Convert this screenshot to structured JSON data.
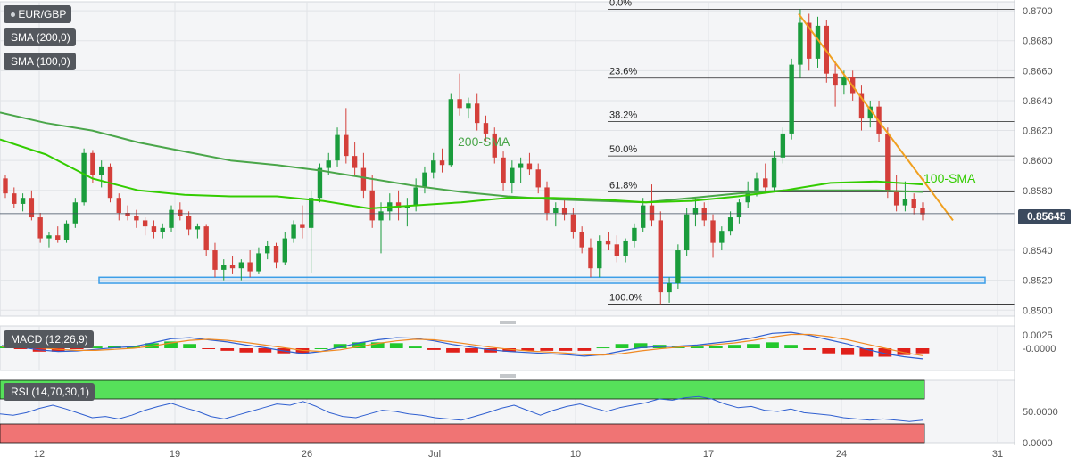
{
  "legend": {
    "symbol": "EUR/GBP",
    "sma200": "SMA (200,0)",
    "sma100": "SMA (100,0)",
    "macd": "MACD (12,26,9)",
    "rsi": "RSI (14,70,30,1)"
  },
  "last_price": "0.85645",
  "colors": {
    "bull": "#1a9c3c",
    "bear": "#d43f3a",
    "sma200": "#4aa64a",
    "sma100": "#33cc00",
    "trend": "#f0a020",
    "support_box": "#3c9ee8",
    "macd_line": "#2f5fd0",
    "signal_line": "#f08a24",
    "rsi_line": "#2f5fd0",
    "overbought": "#56e05a",
    "oversold": "#f07474"
  },
  "chart_data": [
    {
      "type": "candlestick",
      "title": "EUR/GBP",
      "x_ticks": [
        "12",
        "19",
        "26",
        "Jul",
        "10",
        "17",
        "24",
        "31"
      ],
      "y_ticks": [
        "0.8500",
        "0.8520",
        "0.8540",
        "0.8580",
        "0.8600",
        "0.8620",
        "0.8640",
        "0.8660",
        "0.8680",
        "0.8700"
      ],
      "ylim": [
        0.8496,
        0.8706
      ],
      "annotations": {
        "sma200_label": "200-SMA",
        "sma100_label": "100-SMA"
      },
      "fibonacci": [
        {
          "label": "0.0%",
          "value": 0.8701
        },
        {
          "label": "23.6%",
          "value": 0.8655
        },
        {
          "label": "38.2%",
          "value": 0.8626
        },
        {
          "label": "50.0%",
          "value": 0.8603
        },
        {
          "label": "61.8%",
          "value": 0.8579
        },
        {
          "label": "100.0%",
          "value": 0.8504
        }
      ],
      "support_zone": [
        0.8518,
        0.8522
      ],
      "current_price": 0.85645,
      "trendline": [
        [
          0.8698,
          "Jul 20"
        ],
        [
          0.856,
          "Jul 28"
        ]
      ],
      "sma200": [
        0.8632,
        0.8625,
        0.862,
        0.8612,
        0.8606,
        0.86,
        0.8597,
        0.8593,
        0.8588,
        0.8583,
        0.8579,
        0.8576,
        0.8574,
        0.8573,
        0.8572,
        0.8575,
        0.8578,
        0.858,
        0.858,
        0.858,
        0.8579
      ],
      "sma100": [
        0.8614,
        0.8604,
        0.8588,
        0.858,
        0.8577,
        0.8576,
        0.8576,
        0.8573,
        0.8568,
        0.857,
        0.8572,
        0.8575,
        0.8575,
        0.8574,
        0.8572,
        0.8573,
        0.8576,
        0.858,
        0.8585,
        0.8586,
        0.8584
      ],
      "candles": [
        [
          0.8588,
          0.859,
          0.8575,
          0.8578
        ],
        [
          0.8578,
          0.8582,
          0.8568,
          0.8571
        ],
        [
          0.8571,
          0.8578,
          0.8566,
          0.8575
        ],
        [
          0.8575,
          0.858,
          0.856,
          0.8562
        ],
        [
          0.8562,
          0.8565,
          0.8545,
          0.8548
        ],
        [
          0.8548,
          0.8552,
          0.8542,
          0.855
        ],
        [
          0.855,
          0.8556,
          0.8545,
          0.8547
        ],
        [
          0.8547,
          0.856,
          0.8545,
          0.8558
        ],
        [
          0.8558,
          0.8575,
          0.8555,
          0.8572
        ],
        [
          0.8572,
          0.8608,
          0.857,
          0.8605
        ],
        [
          0.8605,
          0.8607,
          0.8585,
          0.859
        ],
        [
          0.859,
          0.86,
          0.8582,
          0.8596
        ],
        [
          0.8596,
          0.8598,
          0.8572,
          0.8575
        ],
        [
          0.8575,
          0.8578,
          0.856,
          0.8565
        ],
        [
          0.8565,
          0.857,
          0.856,
          0.8563
        ],
        [
          0.8563,
          0.8567,
          0.8555,
          0.856
        ],
        [
          0.856,
          0.8562,
          0.855,
          0.8556
        ],
        [
          0.8556,
          0.856,
          0.8548,
          0.8552
        ],
        [
          0.8552,
          0.8558,
          0.8548,
          0.8555
        ],
        [
          0.8555,
          0.857,
          0.8552,
          0.8567
        ],
        [
          0.8567,
          0.8572,
          0.856,
          0.8563
        ],
        [
          0.8563,
          0.8566,
          0.855,
          0.8554
        ],
        [
          0.8554,
          0.8558,
          0.8548,
          0.8556
        ],
        [
          0.8556,
          0.8557,
          0.8536,
          0.854
        ],
        [
          0.854,
          0.8545,
          0.8522,
          0.8527
        ],
        [
          0.8527,
          0.8534,
          0.852,
          0.853
        ],
        [
          0.853,
          0.8536,
          0.8524,
          0.8528
        ],
        [
          0.8528,
          0.8534,
          0.852,
          0.8532
        ],
        [
          0.8532,
          0.854,
          0.8522,
          0.8526
        ],
        [
          0.8526,
          0.8542,
          0.8524,
          0.8538
        ],
        [
          0.8538,
          0.8546,
          0.8534,
          0.8543
        ],
        [
          0.8543,
          0.8545,
          0.8528,
          0.8532
        ],
        [
          0.8532,
          0.8552,
          0.853,
          0.8548
        ],
        [
          0.8548,
          0.856,
          0.8545,
          0.8557
        ],
        [
          0.8557,
          0.857,
          0.8548,
          0.8555
        ],
        [
          0.8555,
          0.858,
          0.8525,
          0.8575
        ],
        [
          0.8575,
          0.8598,
          0.8572,
          0.8595
        ],
        [
          0.8595,
          0.8605,
          0.859,
          0.86
        ],
        [
          0.86,
          0.8622,
          0.8596,
          0.8617
        ],
        [
          0.8617,
          0.8635,
          0.8598,
          0.8603
        ],
        [
          0.8603,
          0.8612,
          0.859,
          0.8595
        ],
        [
          0.8595,
          0.8605,
          0.8575,
          0.858
        ],
        [
          0.858,
          0.859,
          0.8555,
          0.856
        ],
        [
          0.856,
          0.8572,
          0.8538,
          0.8566
        ],
        [
          0.8566,
          0.8578,
          0.856,
          0.8572
        ],
        [
          0.8572,
          0.858,
          0.856,
          0.8568
        ],
        [
          0.8568,
          0.8575,
          0.8556,
          0.857
        ],
        [
          0.857,
          0.8588,
          0.8566,
          0.8582
        ],
        [
          0.8582,
          0.8596,
          0.8578,
          0.8592
        ],
        [
          0.8592,
          0.8605,
          0.8588,
          0.86
        ],
        [
          0.86,
          0.8608,
          0.8592,
          0.8597
        ],
        [
          0.8597,
          0.8645,
          0.8596,
          0.8641
        ],
        [
          0.8641,
          0.8658,
          0.863,
          0.8635
        ],
        [
          0.8635,
          0.8642,
          0.8628,
          0.8638
        ],
        [
          0.8638,
          0.8645,
          0.862,
          0.8625
        ],
        [
          0.8625,
          0.863,
          0.8612,
          0.8618
        ],
        [
          0.8618,
          0.8622,
          0.8598,
          0.8602
        ],
        [
          0.8602,
          0.8606,
          0.858,
          0.8585
        ],
        [
          0.8585,
          0.86,
          0.8578,
          0.8595
        ],
        [
          0.8595,
          0.8602,
          0.8585,
          0.8598
        ],
        [
          0.8598,
          0.8605,
          0.859,
          0.8594
        ],
        [
          0.8594,
          0.8598,
          0.8578,
          0.8582
        ],
        [
          0.8582,
          0.8586,
          0.856,
          0.8565
        ],
        [
          0.8565,
          0.8572,
          0.8556,
          0.8568
        ],
        [
          0.8568,
          0.8574,
          0.856,
          0.8564
        ],
        [
          0.8564,
          0.8568,
          0.8548,
          0.8552
        ],
        [
          0.8552,
          0.8556,
          0.8538,
          0.8542
        ],
        [
          0.8542,
          0.8548,
          0.8522,
          0.8528
        ],
        [
          0.8528,
          0.855,
          0.8522,
          0.8546
        ],
        [
          0.8546,
          0.8552,
          0.854,
          0.8544
        ],
        [
          0.8544,
          0.855,
          0.8532,
          0.8536
        ],
        [
          0.8536,
          0.8548,
          0.8532,
          0.8546
        ],
        [
          0.8546,
          0.8558,
          0.8542,
          0.8555
        ],
        [
          0.8555,
          0.8575,
          0.8552,
          0.857
        ],
        [
          0.857,
          0.8584,
          0.8556,
          0.856
        ],
        [
          0.856,
          0.8566,
          0.8504,
          0.8512
        ],
        [
          0.8512,
          0.8522,
          0.8505,
          0.8518
        ],
        [
          0.8518,
          0.8544,
          0.8514,
          0.854
        ],
        [
          0.854,
          0.8568,
          0.8536,
          0.8564
        ],
        [
          0.8564,
          0.8575,
          0.8556,
          0.8568
        ],
        [
          0.8568,
          0.8572,
          0.8556,
          0.856
        ],
        [
          0.856,
          0.8564,
          0.8535,
          0.8545
        ],
        [
          0.8545,
          0.8556,
          0.854,
          0.8553
        ],
        [
          0.8553,
          0.8566,
          0.855,
          0.8562
        ],
        [
          0.8562,
          0.8574,
          0.8558,
          0.8572
        ],
        [
          0.8572,
          0.8586,
          0.8568,
          0.858
        ],
        [
          0.858,
          0.8592,
          0.8576,
          0.8588
        ],
        [
          0.8588,
          0.8598,
          0.8578,
          0.8582
        ],
        [
          0.8582,
          0.8606,
          0.858,
          0.8602
        ],
        [
          0.8602,
          0.8622,
          0.8598,
          0.8618
        ],
        [
          0.8618,
          0.8668,
          0.8614,
          0.8664
        ],
        [
          0.8664,
          0.8701,
          0.8655,
          0.8692
        ],
        [
          0.8692,
          0.8698,
          0.866,
          0.8668
        ],
        [
          0.8668,
          0.8696,
          0.8662,
          0.869
        ],
        [
          0.869,
          0.8694,
          0.8652,
          0.8658
        ],
        [
          0.8658,
          0.8666,
          0.8636,
          0.865
        ],
        [
          0.865,
          0.866,
          0.8644,
          0.8656
        ],
        [
          0.8656,
          0.866,
          0.864,
          0.8645
        ],
        [
          0.8645,
          0.865,
          0.862,
          0.8628
        ],
        [
          0.8628,
          0.864,
          0.8622,
          0.8636
        ],
        [
          0.8636,
          0.864,
          0.8612,
          0.8618
        ],
        [
          0.8618,
          0.8622,
          0.8575,
          0.858
        ],
        [
          0.858,
          0.859,
          0.8566,
          0.857
        ],
        [
          0.857,
          0.8586,
          0.8566,
          0.8574
        ],
        [
          0.8574,
          0.8578,
          0.8564,
          0.8568
        ],
        [
          0.8568,
          0.8572,
          0.856,
          0.8564
        ]
      ]
    },
    {
      "type": "line",
      "title": "MACD (12,26,9)",
      "y_ticks": [
        "0.0025",
        "-0.0000"
      ],
      "ylim": [
        -0.0042,
        0.0042
      ],
      "series": [
        {
          "name": "MACD",
          "values": [
            0.0005,
            0.0002,
            -0.0003,
            -0.0006,
            -0.0005,
            -0.0002,
            0.0001,
            0.0003,
            0.001,
            0.0018,
            0.002,
            0.0016,
            0.0012,
            0.0006,
            0.0001,
            -0.0005,
            -0.001,
            -0.0006,
            0.0002,
            0.001,
            0.0016,
            0.002,
            0.0019,
            0.0014,
            0.0007,
            0.0002,
            -0.0003,
            -0.0006,
            -0.0008,
            -0.001,
            -0.0012,
            -0.0015,
            -0.0012,
            -0.0005,
            0.0001,
            0.0003,
            0.0004,
            0.0006,
            0.001,
            0.0014,
            0.002,
            0.0028,
            0.003,
            0.0024,
            0.0016,
            0.0008,
            -0.0002,
            -0.001,
            -0.0016,
            -0.002
          ]
        },
        {
          "name": "Signal",
          "values": [
            0.0003,
            0.0003,
            0.0001,
            -0.0002,
            -0.0004,
            -0.0004,
            -0.0002,
            0.0,
            0.0004,
            0.001,
            0.0015,
            0.0017,
            0.0015,
            0.0011,
            0.0006,
            0.0001,
            -0.0004,
            -0.0006,
            -0.0003,
            0.0003,
            0.0009,
            0.0014,
            0.0017,
            0.0016,
            0.0012,
            0.0007,
            0.0002,
            -0.0002,
            -0.0005,
            -0.0007,
            -0.0009,
            -0.0012,
            -0.0013,
            -0.001,
            -0.0005,
            -0.0001,
            0.0002,
            0.0004,
            0.0007,
            0.001,
            0.0015,
            0.0021,
            0.0026,
            0.0026,
            0.0022,
            0.0016,
            0.0008,
            0.0,
            -0.0008,
            -0.0014
          ]
        }
      ]
    },
    {
      "type": "line",
      "title": "RSI (14,70,30,1)",
      "y_ticks": [
        "50.0000",
        "0.0000"
      ],
      "ylim": [
        0,
        100
      ],
      "overbought": 70,
      "oversold": 30,
      "series": [
        {
          "name": "RSI",
          "values": [
            46,
            44,
            48,
            55,
            60,
            54,
            47,
            40,
            42,
            38,
            44,
            52,
            58,
            63,
            56,
            50,
            42,
            38,
            44,
            50,
            56,
            62,
            60,
            66,
            58,
            48,
            42,
            40,
            46,
            52,
            50,
            46,
            44,
            40,
            38,
            36,
            42,
            48,
            55,
            60,
            52,
            44,
            52,
            58,
            62,
            56,
            50,
            56,
            60,
            64,
            70,
            68,
            72,
            74,
            70,
            62,
            56,
            58,
            52,
            50,
            54,
            48,
            46,
            44,
            40,
            38,
            36,
            38,
            36,
            34,
            36
          ]
        }
      ]
    }
  ]
}
